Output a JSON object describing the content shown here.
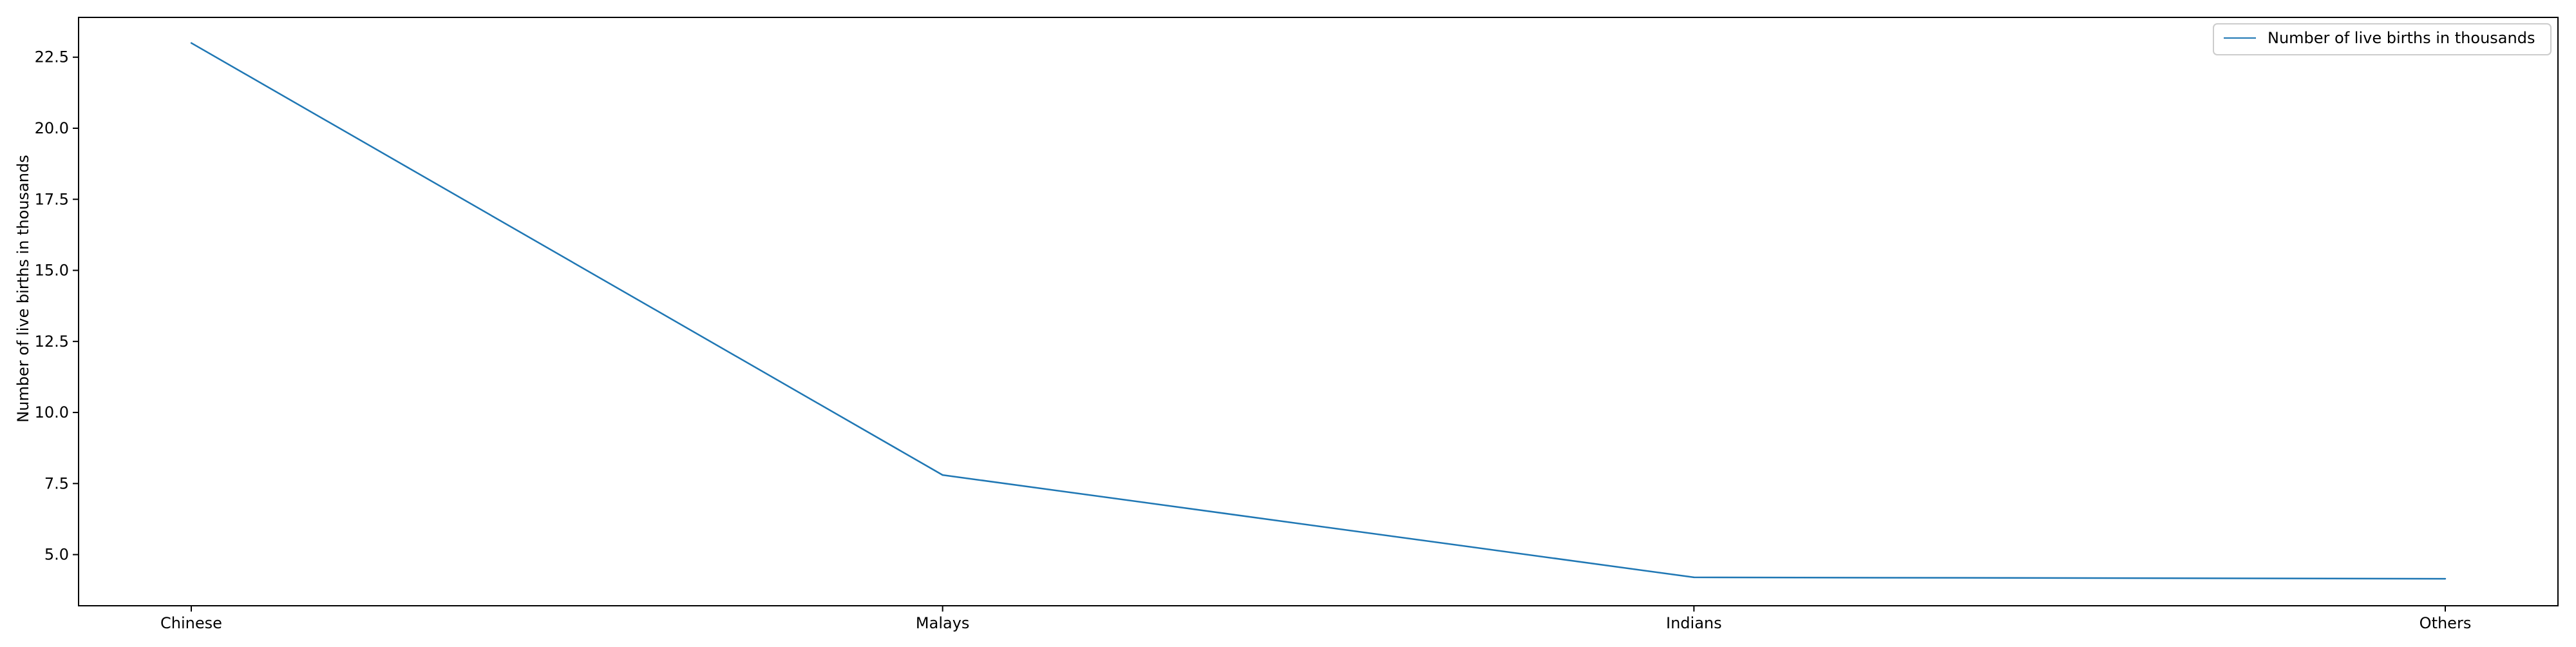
{
  "chart_data": {
    "type": "line",
    "title": "",
    "xlabel": "",
    "ylabel": "Number of live births in thousands",
    "categories": [
      "Chinese",
      "Malays",
      "Indians",
      "Others"
    ],
    "series": [
      {
        "name": "Number of live births in thousands",
        "values": [
          23.0,
          7.8,
          4.2,
          4.15
        ],
        "color": "#1f77b4"
      }
    ],
    "ylim": [
      3.2,
      23.9
    ],
    "yticks": [
      5.0,
      7.5,
      10.0,
      12.5,
      15.0,
      17.5,
      20.0,
      22.5
    ],
    "ytick_labels": [
      "5.0",
      "7.5",
      "10.0",
      "12.5",
      "15.0",
      "17.5",
      "20.0",
      "22.5"
    ],
    "grid": false,
    "legend": "top-right"
  }
}
